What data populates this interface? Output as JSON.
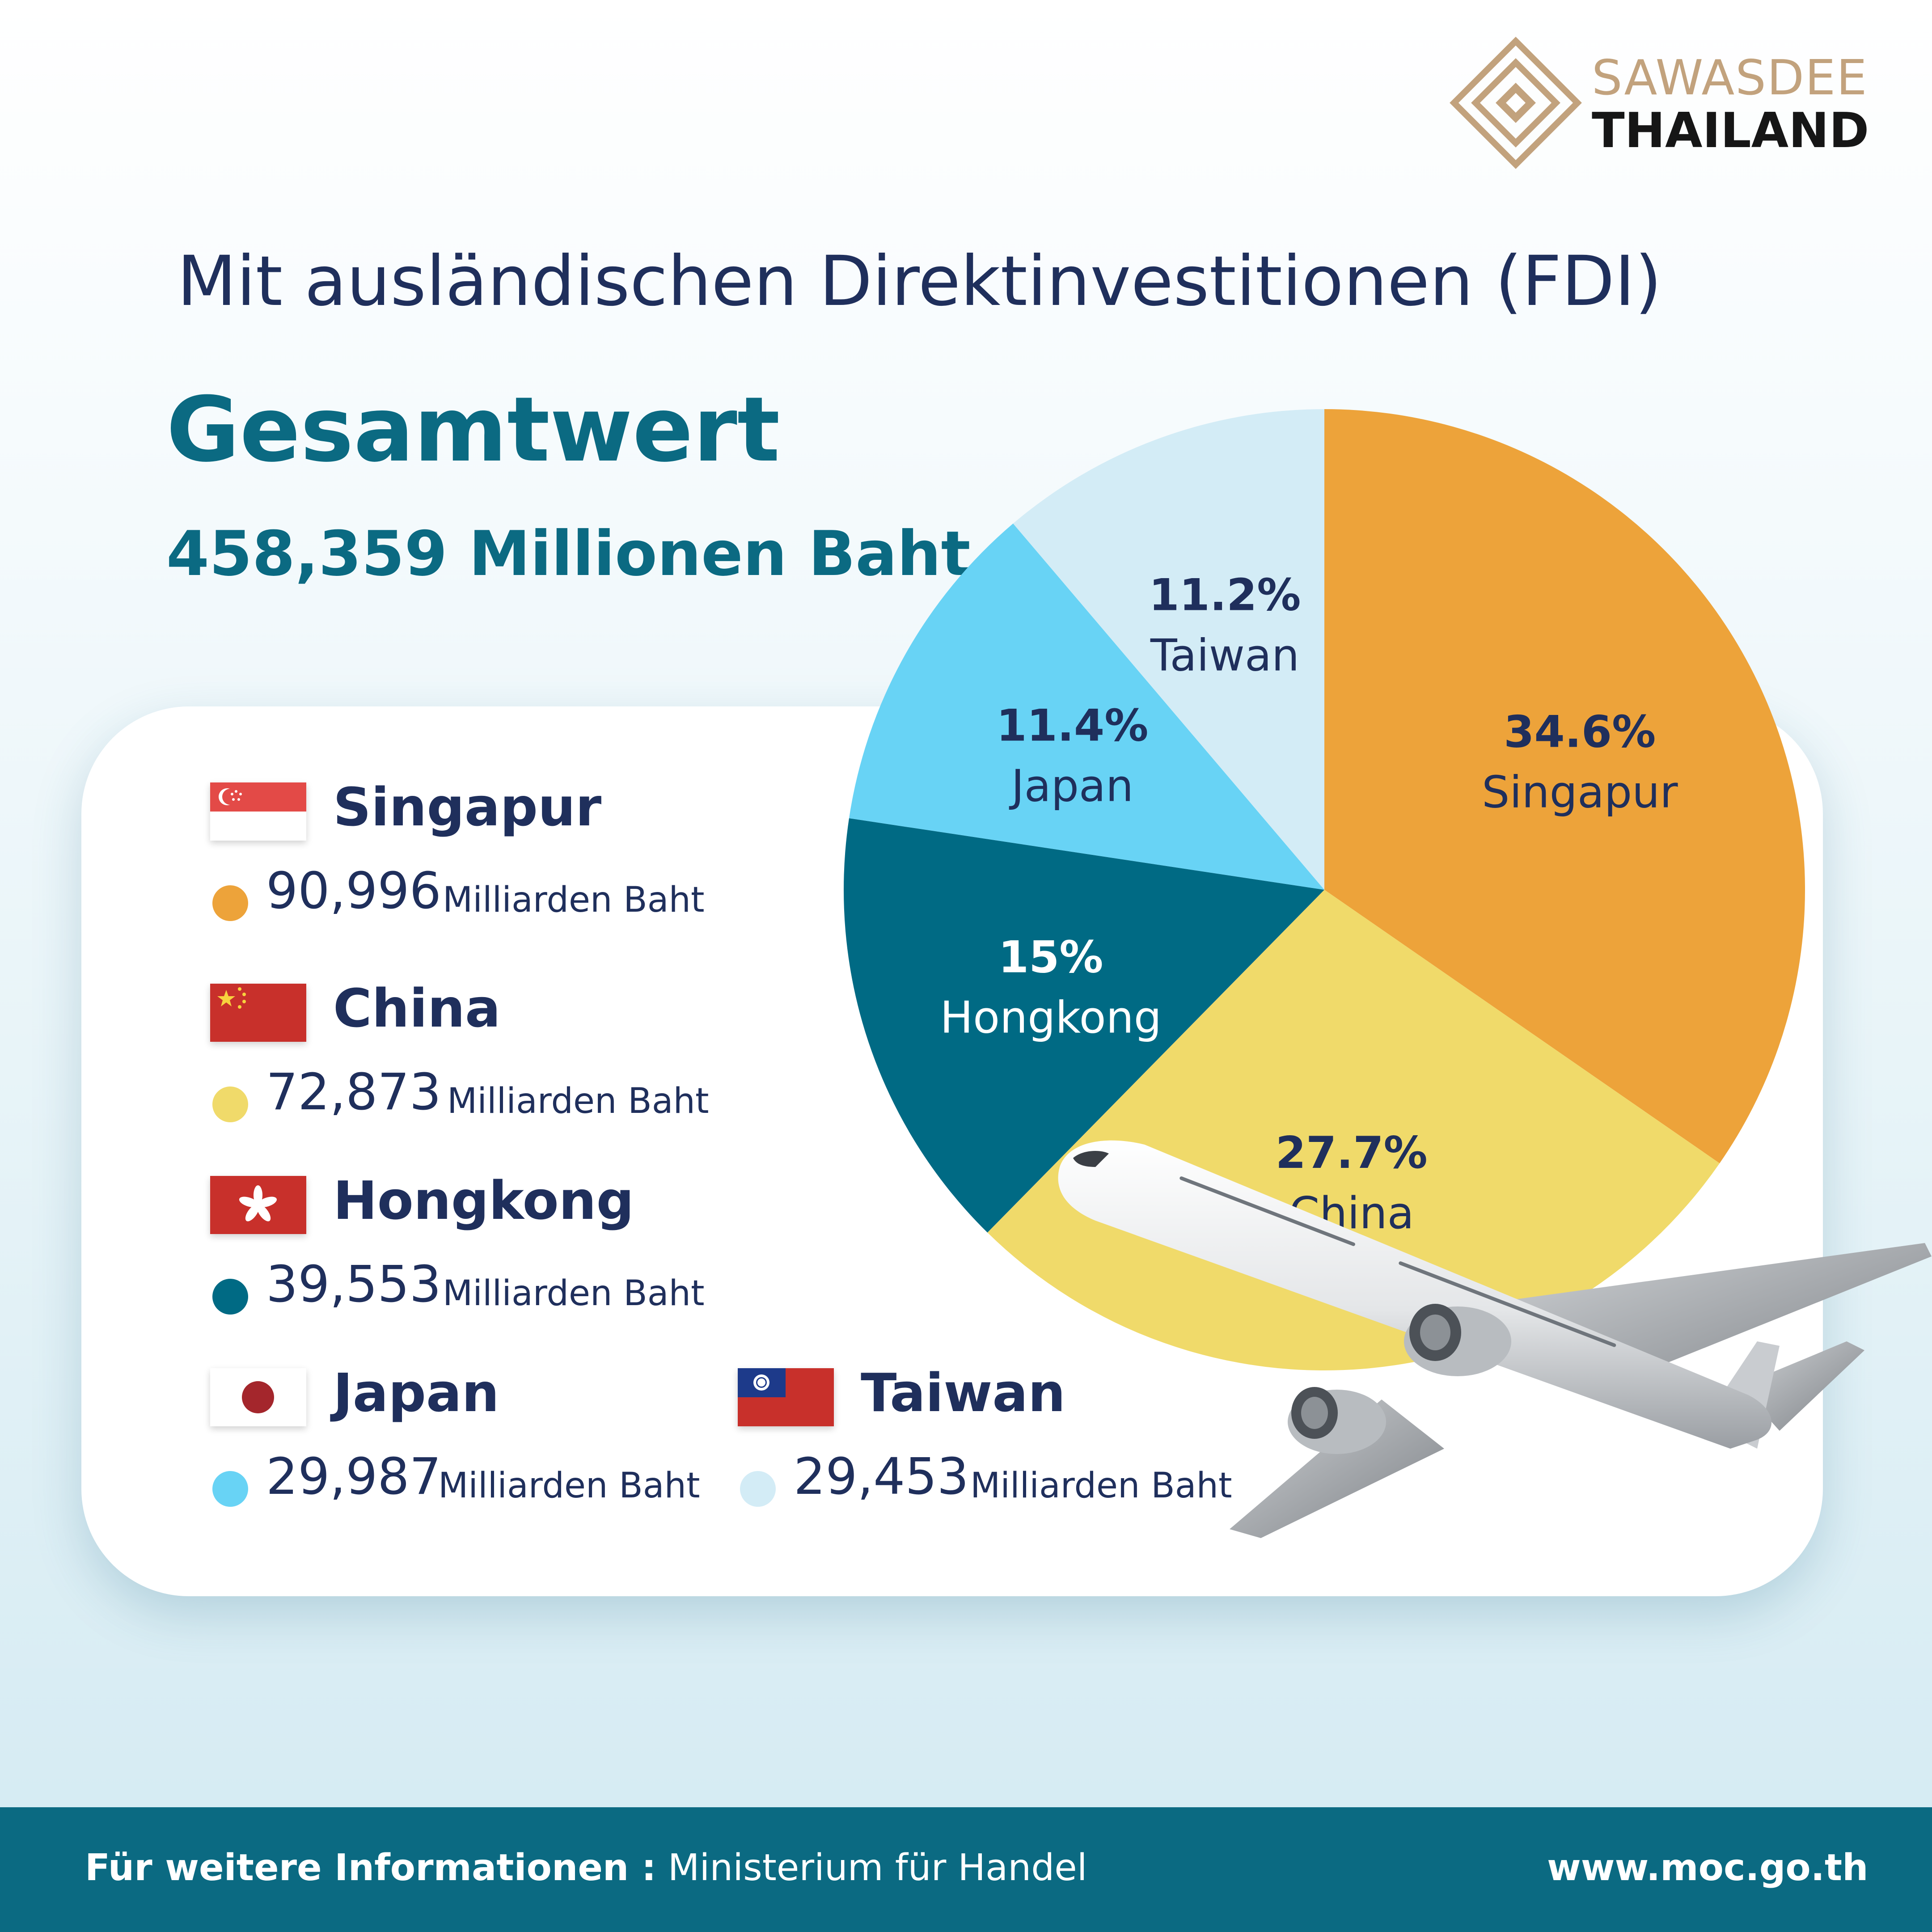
{
  "brand": {
    "line1": "SAWASDEE",
    "line2": "THAILAND",
    "icon": "diamond-lattice-logo-icon",
    "color": "#c2a27d"
  },
  "heading": "Mit ausländischen Direktinvestitionen (FDI)",
  "total": {
    "label": "Gesamtwert",
    "value": "458,359 Millionen Baht"
  },
  "legend": [
    {
      "name": "Singapur",
      "amount": "90,996",
      "unit": "Milliarden Baht",
      "color": "#eda33a",
      "icon": "singapore-flag-icon"
    },
    {
      "name": "China",
      "amount": "72,873",
      "unit": "Milliarden Baht",
      "color": "#f0da6a",
      "icon": "china-flag-icon"
    },
    {
      "name": "Hongkong",
      "amount": "39,553",
      "unit": "Milliarden Baht",
      "color": "#006a84",
      "icon": "hongkong-flag-icon"
    },
    {
      "name": "Japan",
      "amount": "29,987",
      "unit": "Milliarden Baht",
      "color": "#68d3f5",
      "icon": "japan-flag-icon"
    },
    {
      "name": "Taiwan",
      "amount": "29,453",
      "unit": "Milliarden Baht",
      "color": "#d3ecf6",
      "icon": "taiwan-flag-icon"
    }
  ],
  "chart_data": {
    "type": "pie",
    "categories": [
      "Singapur",
      "China",
      "Hongkong",
      "Japan",
      "Taiwan"
    ],
    "values": [
      34.6,
      27.7,
      15,
      11.4,
      11.2
    ],
    "labels": [
      "34.6%",
      "27.7%",
      "15%",
      "11.4%",
      "11.2%"
    ],
    "colors": [
      "#eda33a",
      "#f0da6a",
      "#006a84",
      "#68d3f5",
      "#d3ecf6"
    ],
    "label_colors": [
      "#1f2f5c",
      "#1f2f5c",
      "#ffffff",
      "#1f2f5c",
      "#1f2f5c"
    ],
    "start_angle": "12 o'clock",
    "direction": "clockwise",
    "legend": "left, inside card"
  },
  "decoration": {
    "plane": "airplane-icon"
  },
  "footer": {
    "label": "Für weitere Informationen :",
    "source": " Ministerium für Handel",
    "url": "www.moc.go.th"
  }
}
